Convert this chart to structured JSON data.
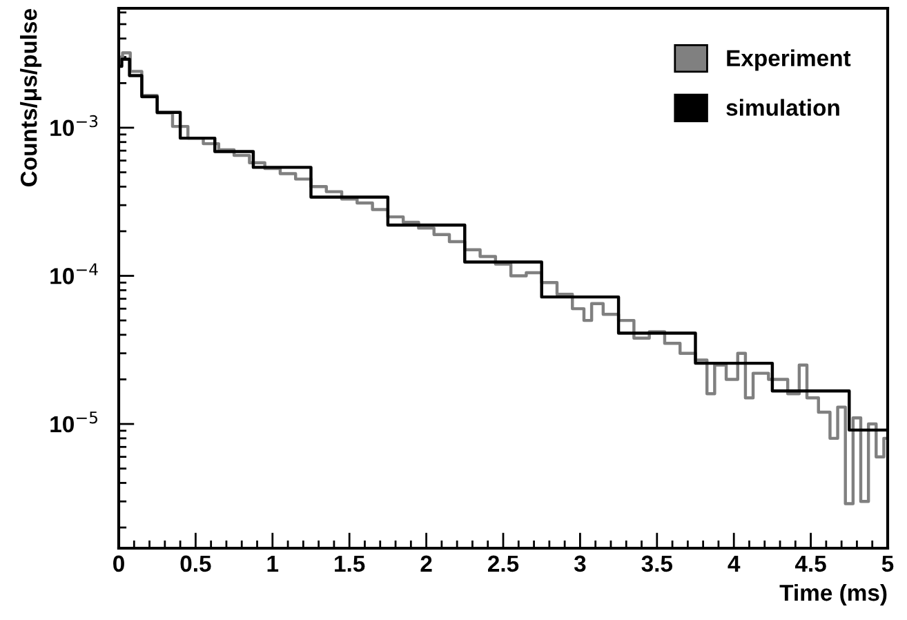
{
  "chart_data": {
    "type": "step",
    "xlabel": "Time (ms)",
    "ylabel": "Counts/μs/pulse",
    "xlim": [
      0,
      5
    ],
    "xticks": [
      0,
      0.5,
      1,
      1.5,
      2,
      2.5,
      3,
      3.5,
      4,
      4.5,
      5
    ],
    "ylim": [
      1.45e-06,
      0.0064
    ],
    "log": "y",
    "yticks": [
      {
        "value": 1e-05,
        "label": "10$^{−5}$"
      },
      {
        "value": 0.0001,
        "label": "10$^{−4}$"
      },
      {
        "value": 0.001,
        "label": "10$^{−3}$"
      }
    ],
    "legend": "top right",
    "grid": false,
    "line_style": "solid",
    "marker": "none",
    "series": [
      {
        "name": "Experiment",
        "color": "#808080",
        "x": [
          0,
          0.05,
          0.1,
          0.2,
          0.3,
          0.4,
          0.5,
          0.6,
          0.7,
          0.8,
          0.9,
          1.0,
          1.1,
          1.2,
          1.3,
          1.4,
          1.5,
          1.6,
          1.7,
          1.8,
          1.9,
          2.0,
          2.1,
          2.2,
          2.3,
          2.4,
          2.5,
          2.6,
          2.7,
          2.8,
          2.9,
          3.0,
          3.05,
          3.1,
          3.2,
          3.3,
          3.4,
          3.5,
          3.6,
          3.7,
          3.8,
          3.85,
          3.9,
          4.0,
          4.05,
          4.1,
          4.15,
          4.3,
          4.4,
          4.45,
          4.5,
          4.6,
          4.65,
          4.7,
          4.75,
          4.8,
          4.85,
          4.9,
          4.95,
          5.0
        ],
        "values": [
          0.003,
          0.0032,
          0.0024,
          0.00165,
          0.00126,
          0.00102,
          0.00085,
          0.00078,
          0.00071,
          0.00065,
          0.00058,
          0.00053,
          0.00049,
          0.00045,
          0.0004,
          0.00037,
          0.00033,
          0.00031,
          0.00028,
          0.00025,
          0.00023,
          0.00021,
          0.00019,
          0.00017,
          0.00015,
          0.000135,
          0.00012,
          0.0001,
          0.000105,
          9e-05,
          7.5e-05,
          6e-05,
          5e-05,
          6.5e-05,
          5.5e-05,
          5e-05,
          3.8e-05,
          4.2e-05,
          3.5e-05,
          3e-05,
          2.7e-05,
          1.6e-05,
          2.5e-05,
          2e-05,
          3e-05,
          1.5e-05,
          2.2e-05,
          2e-05,
          1.6e-05,
          2.5e-05,
          1.5e-05,
          1.2e-05,
          8e-06,
          1.3e-05,
          2.9e-06,
          1.1e-05,
          3e-06,
          1e-05,
          6e-06,
          8e-06
        ]
      },
      {
        "name": "simulation",
        "color": "#000000",
        "x": [
          0,
          0.04,
          0.1,
          0.2,
          0.3,
          0.5,
          0.75,
          1.0,
          1.5,
          2.0,
          2.5,
          3.0,
          3.5,
          4.0,
          4.5,
          5.0
        ],
        "values": [
          0.0026,
          0.0029,
          0.00225,
          0.00162,
          0.00127,
          0.00085,
          0.00069,
          0.00054,
          0.00034,
          0.00022,
          0.000124,
          7.2e-05,
          4.1e-05,
          2.57e-05,
          1.67e-05,
          9.1e-06
        ]
      }
    ]
  }
}
